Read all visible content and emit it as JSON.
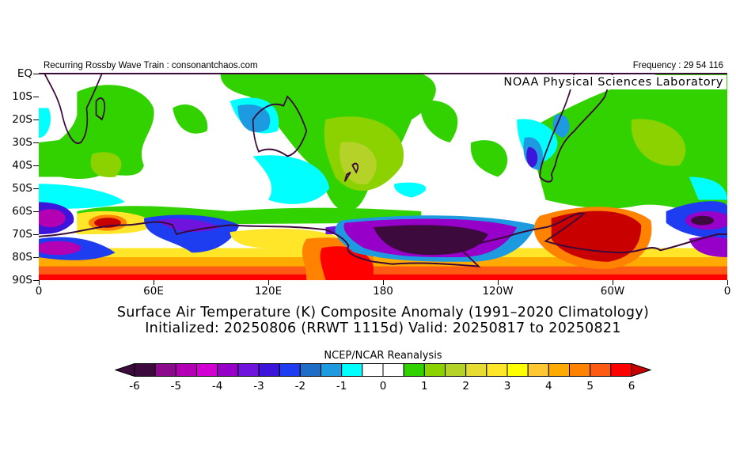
{
  "header": {
    "left_text": "Recurring Rossby Wave Train : consonantchaos.com",
    "right_text": "Frequency : 29 54 116",
    "lab_label": "NOAA Physical Sciences Laboratory"
  },
  "axes": {
    "y_ticks": [
      "EQ",
      "10S",
      "20S",
      "30S",
      "40S",
      "50S",
      "60S",
      "70S",
      "80S",
      "90S"
    ],
    "x_ticks": [
      "0",
      "60E",
      "120E",
      "180",
      "120W",
      "60W",
      "0"
    ]
  },
  "title": {
    "line1": "Surface Air Temperature (K) Composite Anomaly (1991–2020 Climatology)",
    "line2": "Initialized: 20250806 (RRWT 1115d) Valid: 20250817 to 20250821"
  },
  "colorbar": {
    "title": "NCEP/NCAR Reanalysis",
    "labels": [
      "-6",
      "-5",
      "-4",
      "-3",
      "-2",
      "-1",
      "0",
      "1",
      "2",
      "3",
      "4",
      "5",
      "6"
    ],
    "low_arrow_color": "#3c0a3c",
    "high_arrow_color": "#c80000",
    "colors": [
      "#3c0a3c",
      "#8c0a8c",
      "#b400b4",
      "#d200d2",
      "#9600c8",
      "#6e14dc",
      "#3c14dc",
      "#1e3cf0",
      "#1e6ec8",
      "#1e9be0",
      "#00ffff",
      "#ffffff",
      "#ffffff",
      "#32d200",
      "#8cd200",
      "#b4d228",
      "#e6dc32",
      "#ffe628",
      "#ffff00",
      "#ffc832",
      "#ffaa00",
      "#ff8200",
      "#ff5a14",
      "#ff0000"
    ]
  }
}
